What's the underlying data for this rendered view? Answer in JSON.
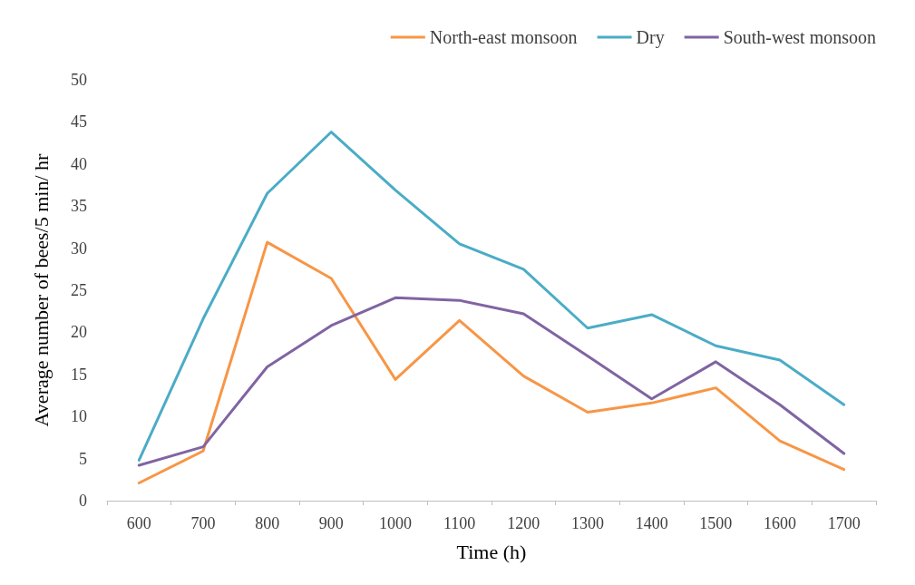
{
  "chart_data": {
    "type": "line",
    "xlabel": "Time (h)",
    "ylabel": "Average number of bees/5 min/ hr",
    "categories": [
      "600",
      "700",
      "800",
      "900",
      "1000",
      "1100",
      "1200",
      "1300",
      "1400",
      "1500",
      "1600",
      "1700"
    ],
    "series": [
      {
        "name": "North-east monsoon",
        "color": "#f79646",
        "values": [
          2.1,
          5.9,
          30.7,
          26.4,
          14.4,
          21.4,
          14.8,
          10.5,
          11.6,
          13.4,
          7.1,
          3.7
        ]
      },
      {
        "name": "Dry",
        "color": "#4bacc6",
        "values": [
          4.8,
          21.6,
          36.5,
          43.8,
          36.9,
          30.5,
          27.5,
          20.5,
          22.1,
          18.4,
          16.7,
          11.4
        ]
      },
      {
        "name": "South-west monsoon",
        "color": "#8064a2",
        "values": [
          4.2,
          6.4,
          15.9,
          20.8,
          24.1,
          23.8,
          22.2,
          17.2,
          12.1,
          16.5,
          11.4,
          5.6
        ]
      }
    ],
    "ylim": [
      0,
      50
    ],
    "yticks": [
      0,
      5,
      10,
      15,
      20,
      25,
      30,
      35,
      40,
      45,
      50
    ],
    "grid": false,
    "legend": "top right",
    "marker": "none",
    "line_style": "solid"
  }
}
